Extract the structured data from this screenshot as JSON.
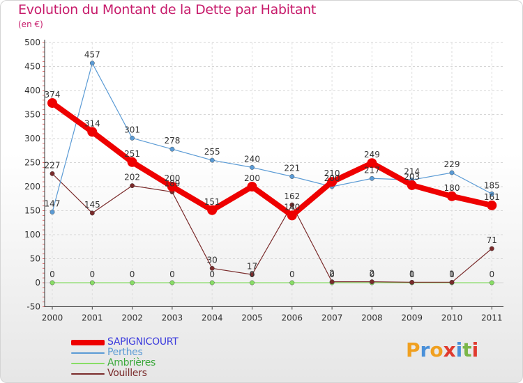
{
  "title": "Evolution du Montant de la Dette par Habitant",
  "subtitle": "(en €)",
  "brand": {
    "text": "Proxiti",
    "letters": [
      {
        "ch": "P",
        "color": "#f0a020"
      },
      {
        "ch": "r",
        "color": "#4a90d9"
      },
      {
        "ch": "o",
        "color": "#f0a020"
      },
      {
        "ch": "x",
        "color": "#e03a2e"
      },
      {
        "ch": "i",
        "color": "#4a90d9"
      },
      {
        "ch": "t",
        "color": "#7ab648"
      },
      {
        "ch": "i",
        "color": "#e03a2e"
      }
    ]
  },
  "chart_data": {
    "type": "line",
    "title": "Evolution du Montant de la Dette par Habitant",
    "subtitle": "(en €)",
    "x": [
      "2000",
      "2001",
      "2002",
      "2003",
      "2004",
      "2005",
      "2006",
      "2007",
      "2008",
      "2009",
      "2010",
      "2011"
    ],
    "ylim": [
      -50,
      500
    ],
    "yticks": [
      -50,
      0,
      50,
      100,
      150,
      200,
      250,
      300,
      350,
      400,
      450,
      500
    ],
    "grid": true,
    "legend_position": "bottom-left",
    "series": [
      {
        "name": "SAPIGNICOURT",
        "color": "#ee0000",
        "values": [
          374,
          314,
          251,
          200,
          151,
          200,
          140,
          210,
          249,
          203,
          180,
          161
        ]
      },
      {
        "name": "Perthes",
        "color": "#5b9bd5",
        "values": [
          147,
          457,
          301,
          278,
          255,
          240,
          221,
          200,
          217,
          214,
          229,
          185
        ]
      },
      {
        "name": "Ambrières",
        "color": "#88dd66",
        "values": [
          0,
          0,
          0,
          0,
          0,
          0,
          0,
          0,
          0,
          0,
          0,
          0
        ]
      },
      {
        "name": "Vouillers",
        "color": "#7a2b2b",
        "values": [
          227,
          145,
          202,
          189,
          30,
          17,
          162,
          2,
          2,
          1,
          1,
          71
        ]
      }
    ]
  }
}
